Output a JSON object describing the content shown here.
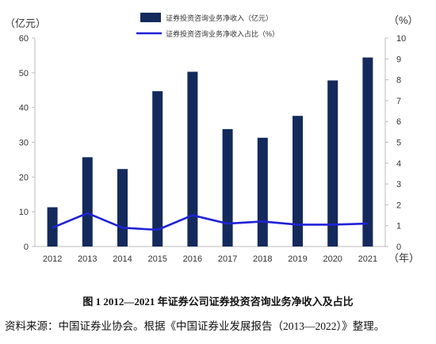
{
  "chart_data": {
    "type": "bar",
    "categories": [
      "2012",
      "2013",
      "2014",
      "2015",
      "2016",
      "2017",
      "2018",
      "2019",
      "2020",
      "2021"
    ],
    "series": [
      {
        "name": "证券投资咨询业务净收入（亿元）",
        "type": "bar",
        "axis": "left",
        "values": [
          11.3,
          25.7,
          22.3,
          44.7,
          50.3,
          33.8,
          31.3,
          37.6,
          47.8,
          54.4
        ]
      },
      {
        "name": "证券投资咨询业务净收入占比（%）",
        "type": "line",
        "axis": "right",
        "values": [
          0.9,
          1.6,
          0.9,
          0.8,
          1.5,
          1.1,
          1.2,
          1.05,
          1.05,
          1.1
        ]
      }
    ],
    "left_axis": {
      "unit": "（亿元）",
      "ylim": [
        0,
        60
      ],
      "ticks": [
        "0",
        "10",
        "20",
        "30",
        "40",
        "50",
        "60"
      ]
    },
    "right_axis": {
      "unit": "（%）",
      "ylim": [
        0,
        10
      ],
      "ticks": [
        "0",
        "1",
        "2",
        "3",
        "4",
        "5",
        "6",
        "7",
        "8",
        "9",
        "10"
      ]
    },
    "x_unit": "（年）",
    "legend_position": "top-center",
    "grid": false,
    "colors": {
      "bar": "#142a5c",
      "line": "#1f22d6",
      "axis": "#bbbbbb"
    }
  },
  "caption": "图 1 2012—2021 年证券公司证券投资咨询业务净收入及占比",
  "source": "资料来源：中国证券业协会。根据《中国证券业发展报告（2013—2022）》整理。"
}
